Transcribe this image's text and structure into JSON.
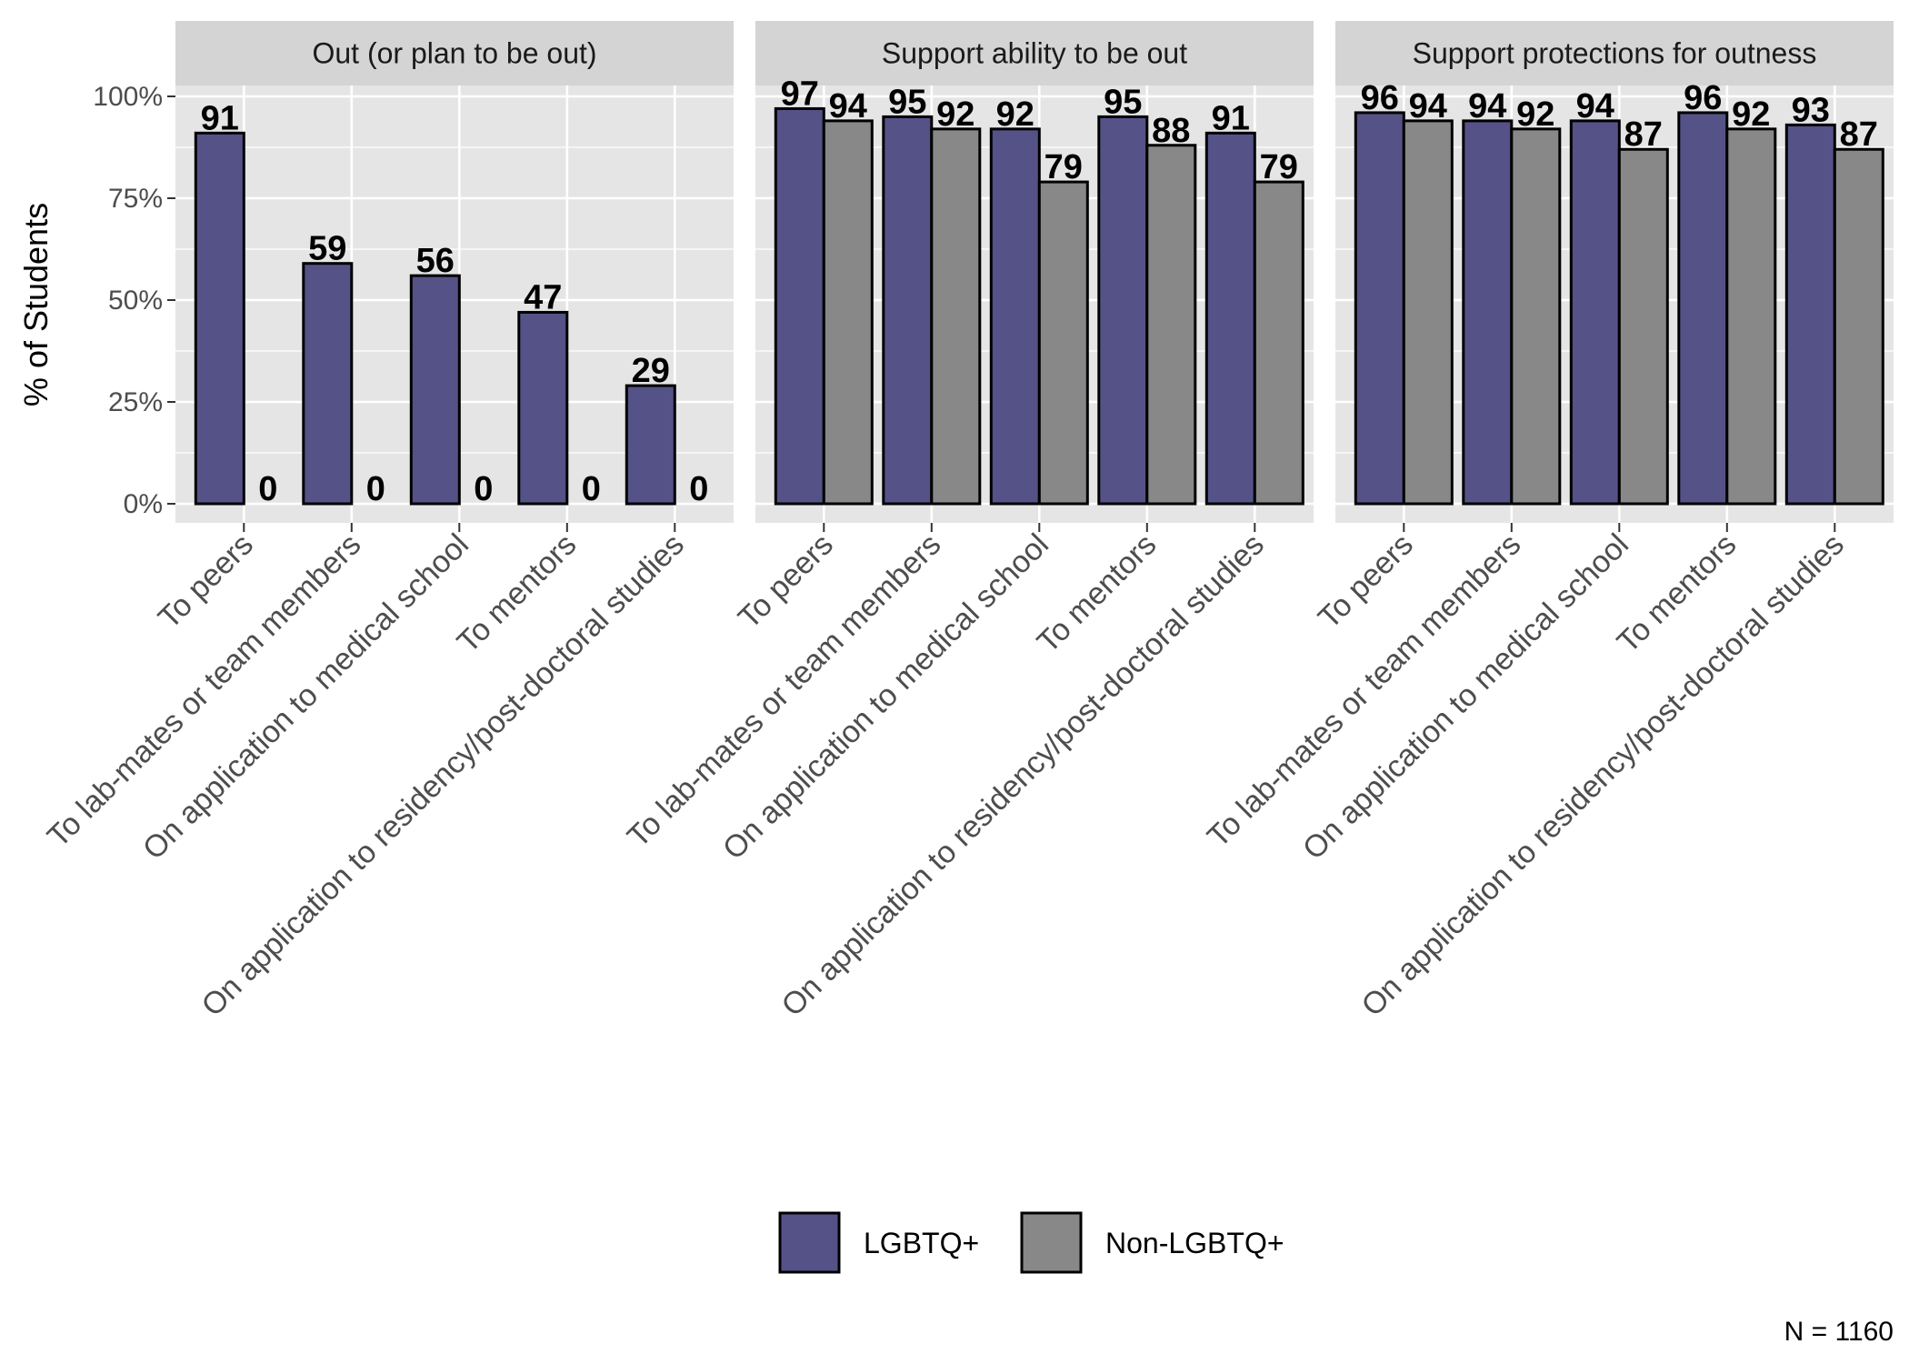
{
  "chart_data": {
    "type": "bar",
    "ylabel": "% of Students",
    "ylim": [
      0,
      100
    ],
    "yticks": [
      "0%",
      "25%",
      "50%",
      "75%",
      "100%"
    ],
    "yticks_values": [
      0,
      25,
      50,
      75,
      100
    ],
    "grid": true,
    "legend_position": "bottom",
    "caption": "N = 1160",
    "categories": [
      "To peers",
      "To lab-mates or team members",
      "On application to medical school",
      "To mentors",
      "On application to residency/post-doctoral studies"
    ],
    "series_names": [
      "LGBTQ+",
      "Non-LGBTQ+"
    ],
    "colors": {
      "LGBTQ+": "#545287",
      "Non-LGBTQ+": "#888888",
      "panel_bg": "#e5e5e5",
      "strip_bg": "#d4d4d4",
      "grid": "#ffffff"
    },
    "panels": [
      {
        "title": "Out (or plan to be out)",
        "series": [
          {
            "name": "LGBTQ+",
            "values": [
              91,
              59,
              56,
              47,
              29
            ]
          },
          {
            "name": "Non-LGBTQ+",
            "values": [
              0,
              0,
              0,
              0,
              0
            ]
          }
        ]
      },
      {
        "title": "Support ability to be out",
        "series": [
          {
            "name": "LGBTQ+",
            "values": [
              97,
              95,
              92,
              95,
              91
            ]
          },
          {
            "name": "Non-LGBTQ+",
            "values": [
              94,
              92,
              79,
              88,
              79
            ]
          }
        ]
      },
      {
        "title": "Support protections for outness",
        "series": [
          {
            "name": "LGBTQ+",
            "values": [
              96,
              94,
              94,
              96,
              93
            ]
          },
          {
            "name": "Non-LGBTQ+",
            "values": [
              94,
              92,
              87,
              92,
              87
            ]
          }
        ]
      }
    ]
  }
}
